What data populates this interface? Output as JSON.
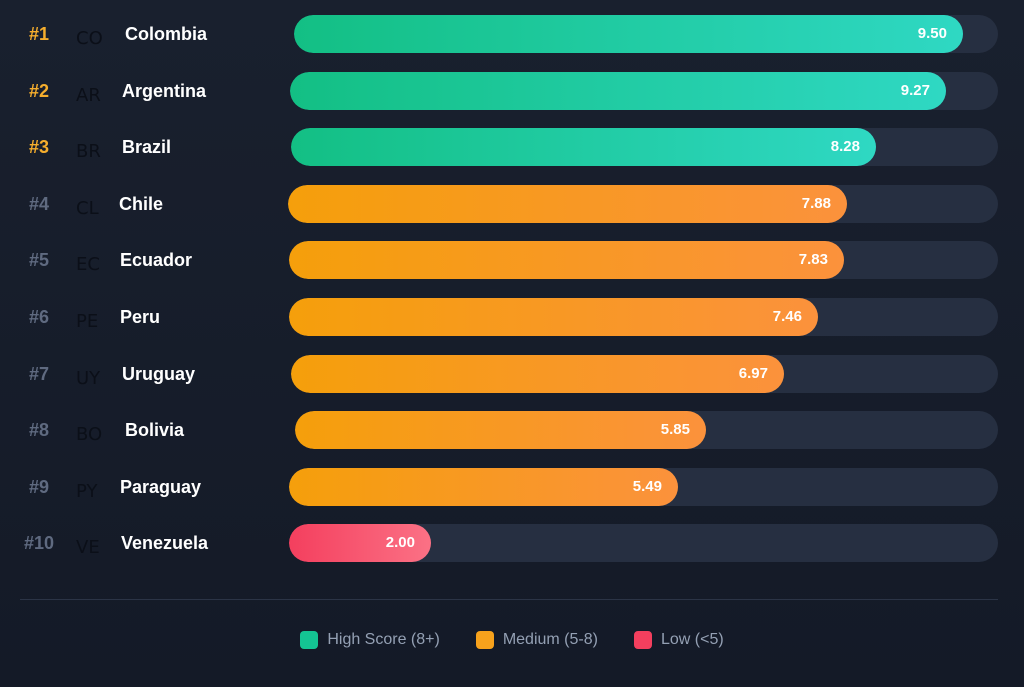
{
  "chart_data": {
    "type": "bar",
    "orientation": "horizontal",
    "xlim": [
      0,
      10
    ],
    "rows": [
      {
        "rank": "#1",
        "code": "CO",
        "country": "Colombia",
        "value": 9.5,
        "label": "9.50",
        "tier": "high"
      },
      {
        "rank": "#2",
        "code": "AR",
        "country": "Argentina",
        "value": 9.27,
        "label": "9.27",
        "tier": "high"
      },
      {
        "rank": "#3",
        "code": "BR",
        "country": "Brazil",
        "value": 8.28,
        "label": "8.28",
        "tier": "high"
      },
      {
        "rank": "#4",
        "code": "CL",
        "country": "Chile",
        "value": 7.88,
        "label": "7.88",
        "tier": "medium"
      },
      {
        "rank": "#5",
        "code": "EC",
        "country": "Ecuador",
        "value": 7.83,
        "label": "7.83",
        "tier": "medium"
      },
      {
        "rank": "#6",
        "code": "PE",
        "country": "Peru",
        "value": 7.46,
        "label": "7.46",
        "tier": "medium"
      },
      {
        "rank": "#7",
        "code": "UY",
        "country": "Uruguay",
        "value": 6.97,
        "label": "6.97",
        "tier": "medium"
      },
      {
        "rank": "#8",
        "code": "BO",
        "country": "Bolivia",
        "value": 5.85,
        "label": "5.85",
        "tier": "medium"
      },
      {
        "rank": "#9",
        "code": "PY",
        "country": "Paraguay",
        "value": 5.49,
        "label": "5.49",
        "tier": "medium"
      },
      {
        "rank": "#10",
        "code": "VE",
        "country": "Venezuela",
        "value": 2.0,
        "label": "2.00",
        "tier": "low"
      }
    ],
    "legend": [
      {
        "key": "high",
        "label": "High Score (8+)",
        "color": "#14c493"
      },
      {
        "key": "medium",
        "label": "Medium (5-8)",
        "color": "#f7a21c"
      },
      {
        "key": "low",
        "label": "Low (<5)",
        "color": "#f43f5e"
      }
    ]
  },
  "colors": {
    "background": "#171e2b",
    "track": "#262f41",
    "top_rank": "#f6ae2d",
    "rank": "#5f6a80"
  }
}
